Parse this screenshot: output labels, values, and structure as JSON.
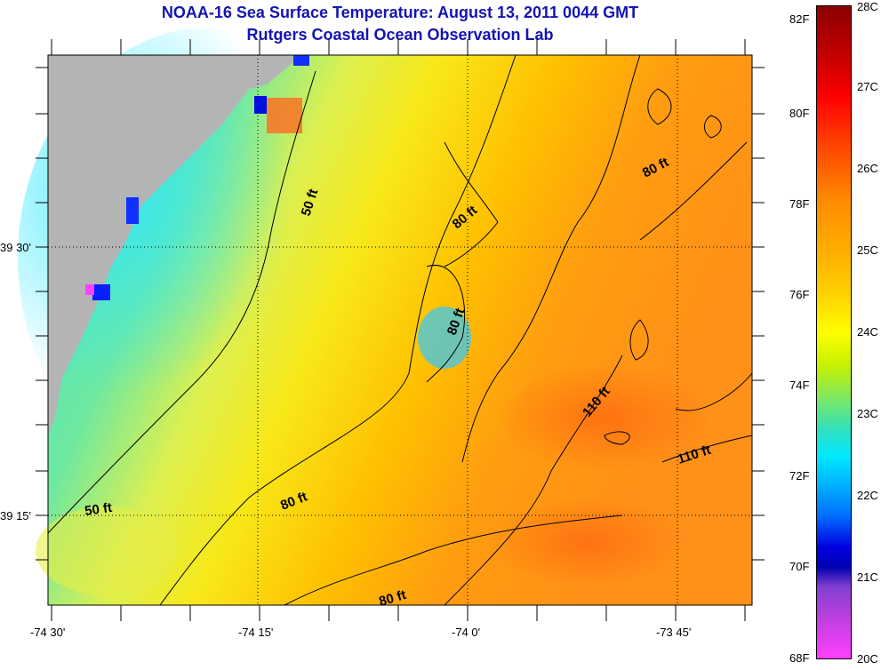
{
  "title": "NOAA-16 Sea Surface Temperature:  August 13, 2011 0044 GMT",
  "subtitle": "Rutgers Coastal Ocean Observation Lab",
  "axes": {
    "y_labels": [
      "39 30'",
      "39 15'"
    ],
    "x_labels": [
      "-74 30'",
      "-74 15'",
      "-74 0'",
      "-73 45'"
    ]
  },
  "contour_labels": [
    "50 ft",
    "80 ft",
    "80 ft",
    "80 ft",
    "110 ft",
    "110 ft",
    "50 ft",
    "80 ft",
    "80 ft"
  ],
  "colorbar": {
    "fahrenheit": [
      "82F",
      "80F",
      "78F",
      "76F",
      "74F",
      "72F",
      "70F",
      "68F"
    ],
    "celsius": [
      "28C",
      "27C",
      "26C",
      "25C",
      "24C",
      "23C",
      "22C",
      "21C",
      "20C"
    ]
  },
  "colors": {
    "title": "#1414b4",
    "land": "#b4b4b4",
    "contour": "#000000"
  }
}
